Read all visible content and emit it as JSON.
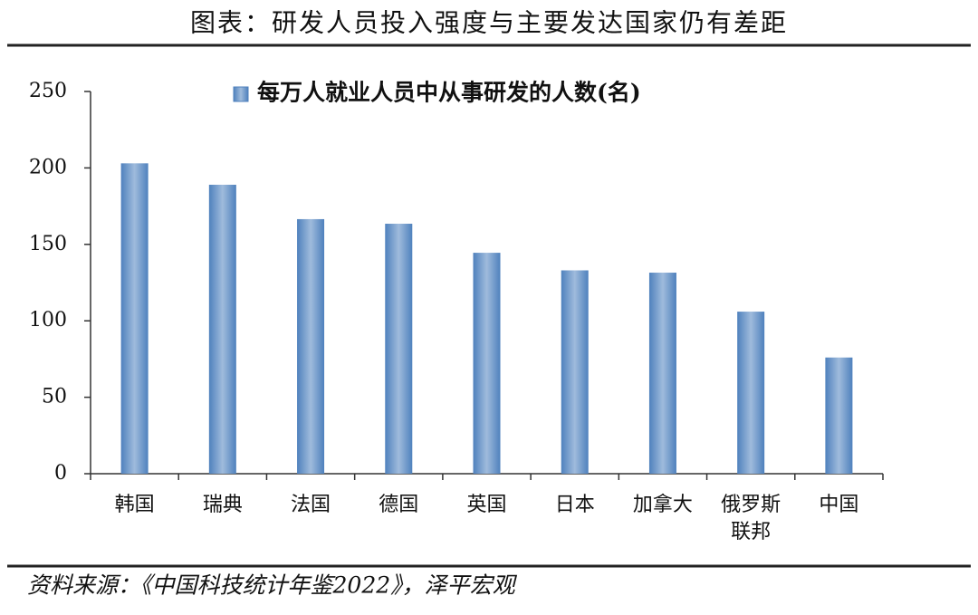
{
  "title": "图表：研发人员投入强度与主要发达国家仍有差距",
  "source": "资料来源：《中国科技统计年鉴2022》，泽平宏观",
  "chart_data": {
    "type": "bar",
    "categories": [
      "韩国",
      "瑞典",
      "法国",
      "德国",
      "英国",
      "日本",
      "加拿大",
      "俄罗斯联邦",
      "中国"
    ],
    "series": [
      {
        "name": "每万人就业人员中从事研发的人数(名)",
        "color": "#4f81bd",
        "values": [
          203,
          189,
          166.5,
          163.5,
          144.5,
          133,
          131.5,
          106,
          76
        ]
      }
    ],
    "ylim": [
      0,
      250
    ],
    "yticks": [
      0,
      50,
      100,
      150,
      200,
      250
    ],
    "grid": false
  }
}
